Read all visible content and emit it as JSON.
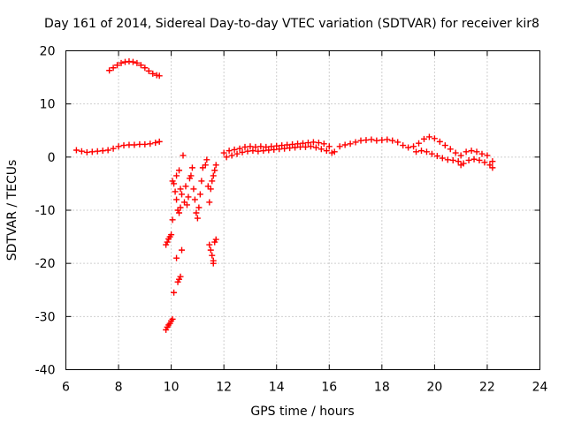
{
  "chart_data": {
    "type": "scatter",
    "title": "Day 161 of 2014, Sidereal Day-to-day VTEC variation (SDTVAR) for receiver kir8",
    "xlabel": "GPS time / hours",
    "ylabel": "SDTVAR / TECUs",
    "xlim": [
      6,
      24
    ],
    "ylim": [
      -40,
      20
    ],
    "xticks": [
      6,
      8,
      10,
      12,
      14,
      16,
      18,
      20,
      22,
      24
    ],
    "yticks": [
      -40,
      -30,
      -20,
      -10,
      0,
      10,
      20
    ],
    "xtick_labels": [
      "6",
      "8",
      "10",
      "12",
      "14",
      "16",
      "18",
      "20",
      "22",
      "24"
    ],
    "ytick_labels": [
      "-40",
      "-30",
      "-20",
      "-10",
      "0",
      "10",
      "20"
    ],
    "grid": true,
    "marker": "+",
    "color": "#ff0000",
    "series": [
      {
        "name": "main-band",
        "points": [
          [
            6.4,
            1.3
          ],
          [
            6.6,
            1.1
          ],
          [
            6.8,
            0.9
          ],
          [
            7.0,
            1.0
          ],
          [
            7.2,
            1.1
          ],
          [
            7.4,
            1.2
          ],
          [
            7.6,
            1.3
          ],
          [
            7.8,
            1.6
          ],
          [
            8.0,
            2.0
          ],
          [
            8.2,
            2.2
          ],
          [
            8.4,
            2.3
          ],
          [
            8.6,
            2.3
          ],
          [
            8.8,
            2.4
          ],
          [
            9.0,
            2.4
          ],
          [
            9.2,
            2.5
          ],
          [
            9.4,
            2.7
          ],
          [
            9.55,
            2.9
          ],
          [
            12.0,
            0.8
          ],
          [
            12.2,
            1.2
          ],
          [
            12.4,
            1.4
          ],
          [
            12.6,
            1.6
          ],
          [
            12.8,
            1.9
          ],
          [
            13.0,
            2.0
          ],
          [
            13.2,
            1.9
          ],
          [
            13.4,
            2.0
          ],
          [
            13.6,
            1.9
          ],
          [
            13.8,
            2.0
          ],
          [
            14.0,
            2.1
          ],
          [
            14.2,
            2.2
          ],
          [
            14.4,
            2.3
          ],
          [
            14.6,
            2.4
          ],
          [
            14.8,
            2.5
          ],
          [
            15.0,
            2.6
          ],
          [
            15.2,
            2.7
          ],
          [
            15.4,
            2.8
          ],
          [
            15.6,
            2.7
          ],
          [
            15.8,
            2.5
          ],
          [
            16.0,
            2.0
          ],
          [
            16.2,
            1.0
          ],
          [
            16.4,
            2.0
          ],
          [
            16.6,
            2.3
          ],
          [
            16.8,
            2.5
          ],
          [
            17.0,
            2.8
          ],
          [
            17.2,
            3.1
          ],
          [
            17.4,
            3.2
          ],
          [
            17.6,
            3.3
          ],
          [
            17.8,
            3.1
          ],
          [
            18.0,
            3.2
          ],
          [
            18.2,
            3.3
          ],
          [
            18.4,
            3.1
          ],
          [
            18.6,
            2.8
          ],
          [
            18.8,
            2.2
          ],
          [
            19.0,
            1.8
          ],
          [
            19.2,
            2.0
          ],
          [
            19.4,
            2.6
          ],
          [
            19.6,
            3.4
          ],
          [
            19.8,
            3.8
          ],
          [
            20.0,
            3.5
          ],
          [
            20.2,
            2.9
          ],
          [
            20.4,
            2.2
          ],
          [
            20.6,
            1.5
          ],
          [
            20.8,
            0.8
          ],
          [
            21.0,
            0.3
          ],
          [
            21.2,
            1.0
          ],
          [
            21.4,
            1.2
          ],
          [
            21.6,
            1.0
          ],
          [
            21.8,
            0.6
          ],
          [
            22.0,
            0.3
          ],
          [
            22.2,
            -0.8
          ]
        ]
      },
      {
        "name": "secondary-band",
        "points": [
          [
            12.1,
            0.0
          ],
          [
            12.3,
            0.3
          ],
          [
            12.5,
            0.6
          ],
          [
            12.7,
            0.9
          ],
          [
            12.9,
            1.1
          ],
          [
            13.1,
            1.2
          ],
          [
            13.3,
            1.1
          ],
          [
            13.5,
            1.2
          ],
          [
            13.7,
            1.3
          ],
          [
            13.9,
            1.4
          ],
          [
            14.1,
            1.5
          ],
          [
            14.3,
            1.6
          ],
          [
            14.5,
            1.7
          ],
          [
            14.7,
            1.8
          ],
          [
            14.9,
            1.9
          ],
          [
            15.1,
            1.9
          ],
          [
            15.3,
            2.0
          ],
          [
            15.5,
            1.8
          ],
          [
            15.7,
            1.5
          ],
          [
            15.9,
            1.2
          ],
          [
            16.1,
            0.8
          ],
          [
            19.3,
            1.0
          ],
          [
            19.5,
            1.2
          ],
          [
            19.7,
            1.0
          ],
          [
            19.9,
            0.6
          ],
          [
            20.1,
            0.2
          ],
          [
            20.3,
            -0.2
          ],
          [
            20.5,
            -0.5
          ],
          [
            20.7,
            -0.6
          ],
          [
            20.9,
            -0.8
          ],
          [
            21.0,
            -1.5
          ],
          [
            21.1,
            -1.2
          ],
          [
            21.3,
            -0.6
          ],
          [
            21.5,
            -0.4
          ],
          [
            21.7,
            -0.6
          ],
          [
            21.9,
            -1.0
          ],
          [
            22.1,
            -1.5
          ],
          [
            22.2,
            -2.0
          ]
        ]
      },
      {
        "name": "upper-arc",
        "points": [
          [
            7.65,
            16.3
          ],
          [
            7.8,
            16.8
          ],
          [
            7.95,
            17.3
          ],
          [
            8.1,
            17.7
          ],
          [
            8.25,
            17.9
          ],
          [
            8.4,
            18.0
          ],
          [
            8.55,
            17.9
          ],
          [
            8.7,
            17.7
          ],
          [
            8.85,
            17.3
          ],
          [
            9.0,
            16.8
          ],
          [
            9.15,
            16.2
          ],
          [
            9.3,
            15.7
          ],
          [
            9.45,
            15.4
          ],
          [
            9.55,
            15.3
          ]
        ]
      },
      {
        "name": "scatter-dip",
        "points": [
          [
            9.8,
            -32.5
          ],
          [
            9.85,
            -32.0
          ],
          [
            9.9,
            -31.6
          ],
          [
            9.95,
            -31.3
          ],
          [
            10.0,
            -30.8
          ],
          [
            10.05,
            -30.5
          ],
          [
            9.8,
            -16.5
          ],
          [
            9.85,
            -16.0
          ],
          [
            9.9,
            -15.4
          ],
          [
            9.95,
            -15.0
          ],
          [
            10.0,
            -14.6
          ],
          [
            10.05,
            -11.8
          ],
          [
            10.1,
            -25.5
          ],
          [
            10.2,
            -19.0
          ],
          [
            10.25,
            -23.5
          ],
          [
            10.3,
            -23.0
          ],
          [
            10.35,
            -22.5
          ],
          [
            10.4,
            -17.5
          ],
          [
            10.05,
            -4.5
          ],
          [
            10.1,
            -5.0
          ],
          [
            10.15,
            -6.5
          ],
          [
            10.2,
            -8.0
          ],
          [
            10.25,
            -10.0
          ],
          [
            10.3,
            -10.5
          ],
          [
            10.35,
            -9.5
          ],
          [
            10.2,
            -3.5
          ],
          [
            10.3,
            -2.5
          ],
          [
            10.35,
            -6.0
          ],
          [
            10.4,
            -7.0
          ],
          [
            10.45,
            0.3
          ],
          [
            10.5,
            -8.5
          ],
          [
            10.55,
            -5.5
          ],
          [
            10.6,
            -9.0
          ],
          [
            10.65,
            -7.5
          ],
          [
            10.7,
            -4.0
          ],
          [
            10.75,
            -3.5
          ],
          [
            10.8,
            -2.0
          ],
          [
            10.85,
            -6.0
          ],
          [
            10.9,
            -8.0
          ],
          [
            10.95,
            -10.5
          ],
          [
            11.0,
            -11.5
          ],
          [
            11.05,
            -9.5
          ],
          [
            11.1,
            -7.0
          ],
          [
            11.15,
            -4.5
          ],
          [
            11.2,
            -2.0
          ],
          [
            11.3,
            -1.5
          ],
          [
            11.35,
            -0.5
          ],
          [
            11.4,
            -5.5
          ],
          [
            11.45,
            -8.5
          ],
          [
            11.5,
            -6.0
          ],
          [
            11.55,
            -4.5
          ],
          [
            11.6,
            -3.5
          ],
          [
            11.65,
            -2.5
          ],
          [
            11.7,
            -1.5
          ],
          [
            11.45,
            -16.5
          ],
          [
            11.5,
            -17.5
          ],
          [
            11.55,
            -18.5
          ],
          [
            11.6,
            -19.5
          ],
          [
            11.65,
            -16.0
          ],
          [
            11.7,
            -15.5
          ],
          [
            11.6,
            -20.0
          ]
        ]
      }
    ]
  }
}
